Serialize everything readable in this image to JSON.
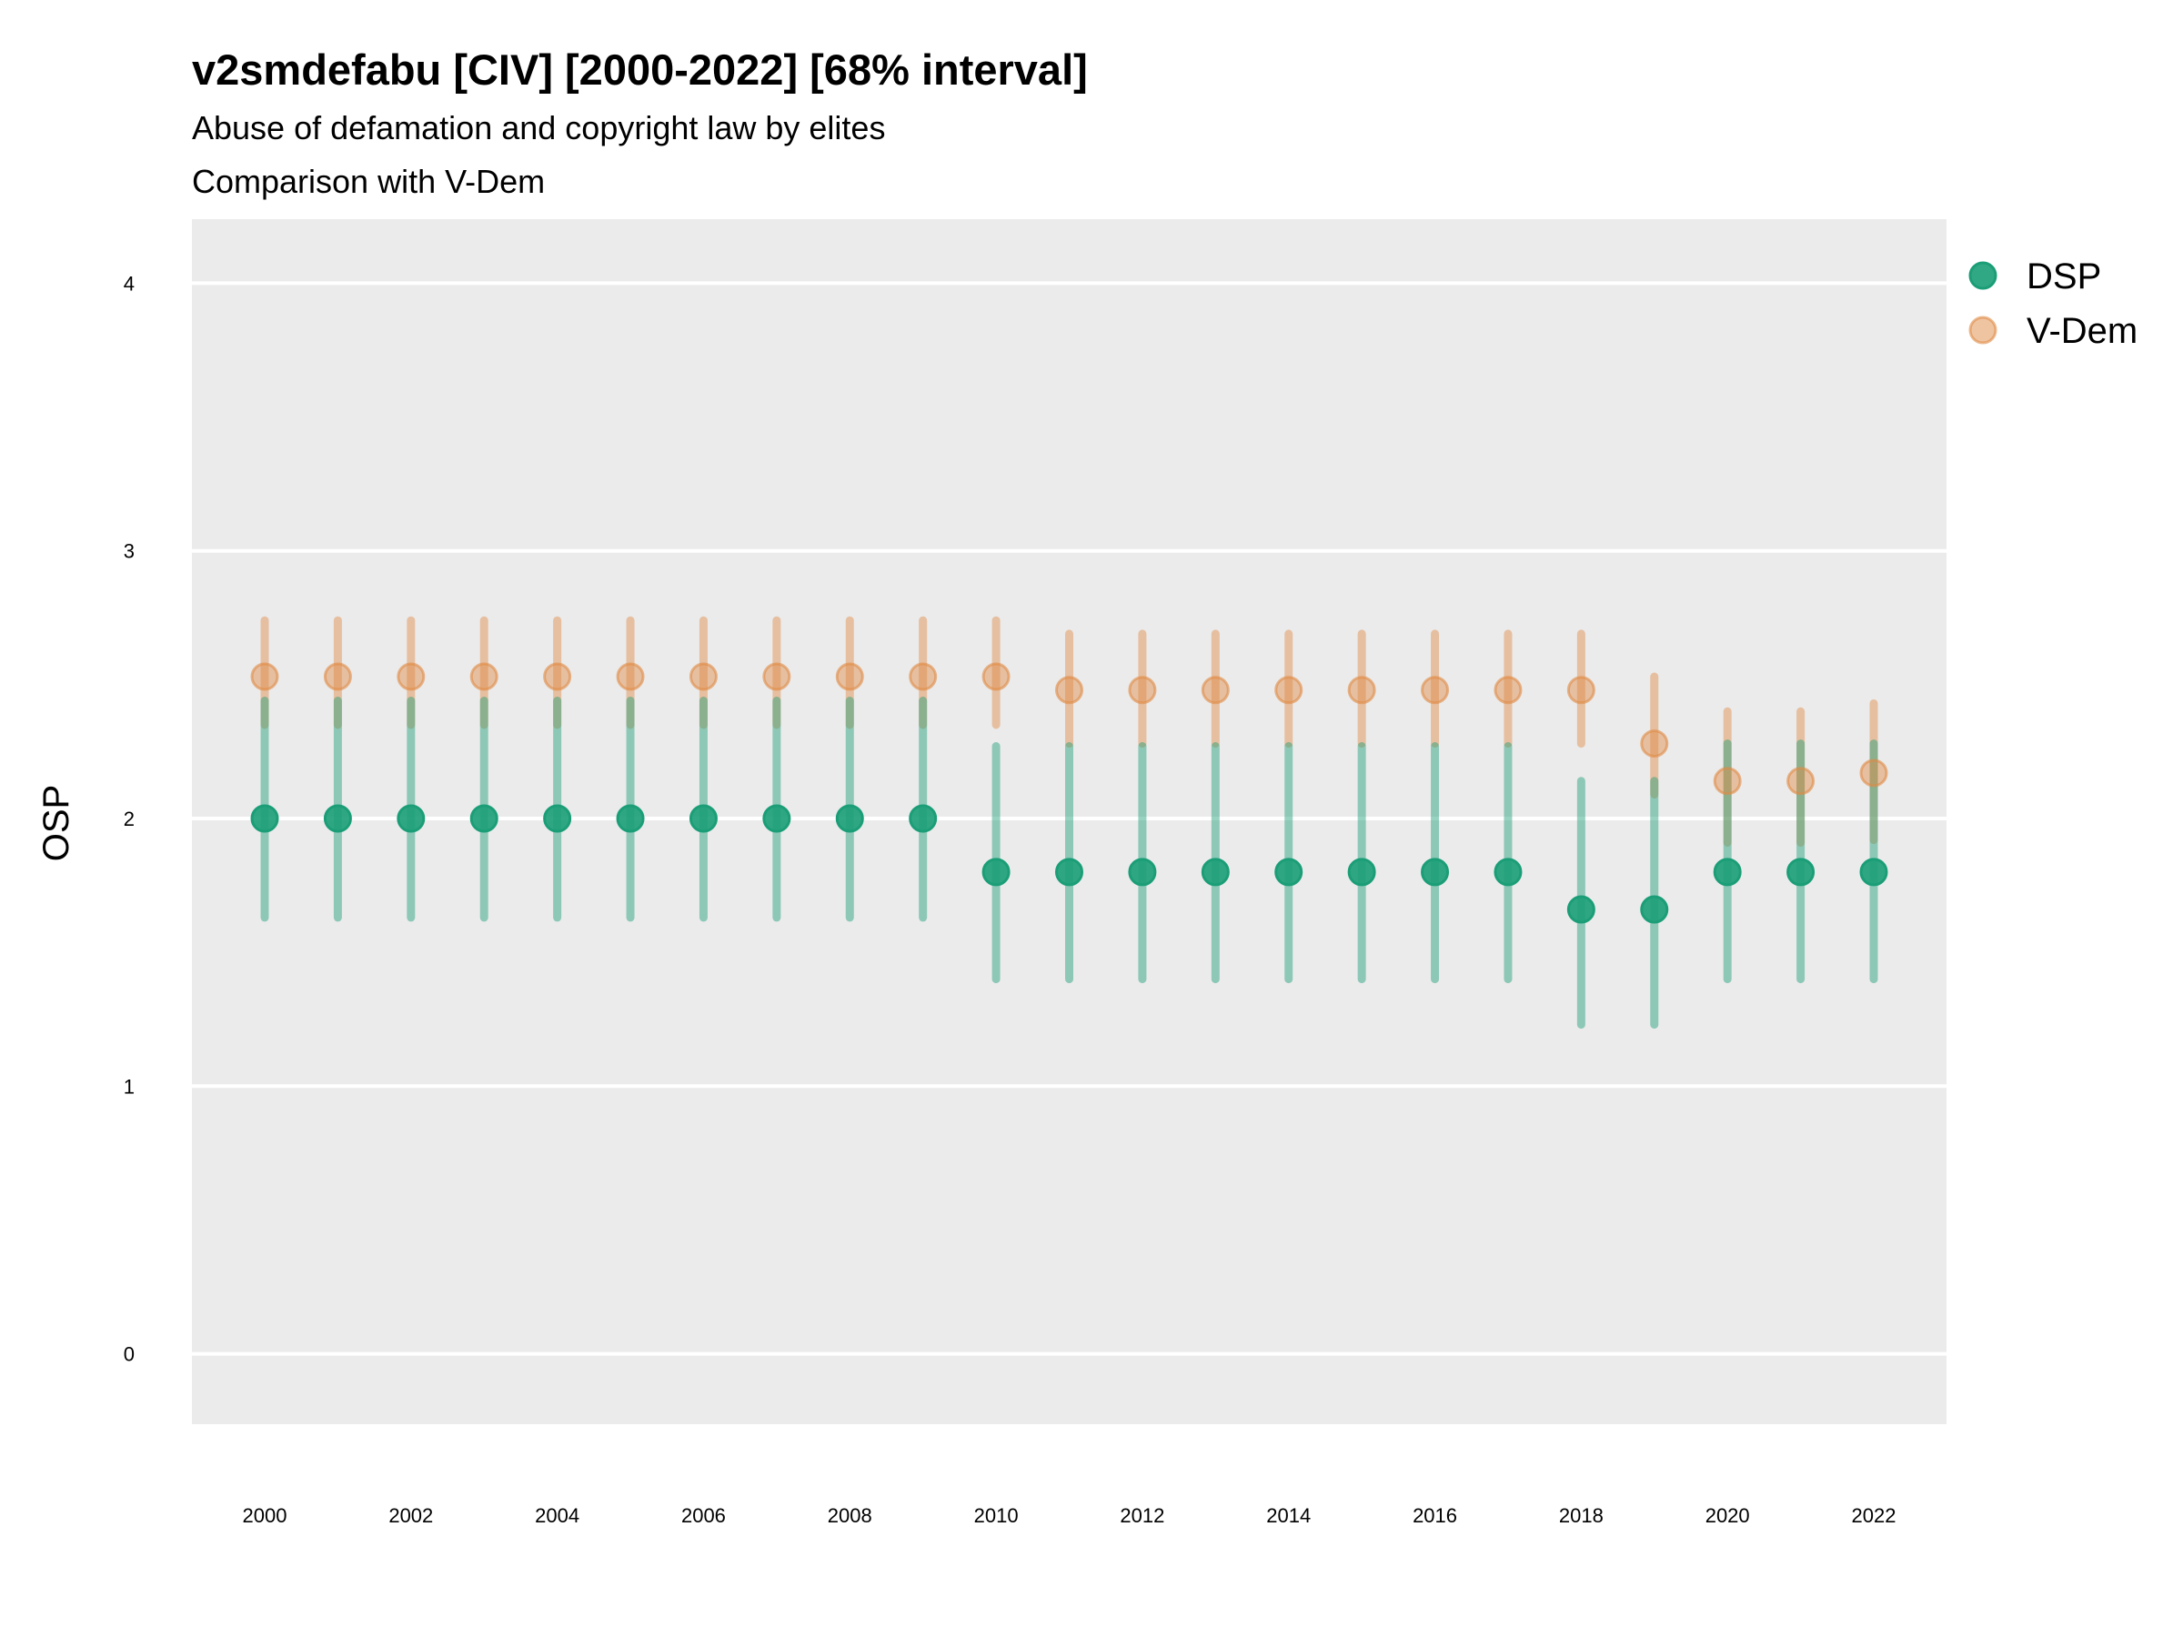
{
  "chart_data": {
    "type": "scatter",
    "title": "v2smdefabu [CIV] [2000-2022] [68% interval]",
    "subtitle": "Abuse of defamation and copyright law by elites",
    "caption": "Comparison with V-Dem",
    "xlabel": "",
    "ylabel": "OSP",
    "ylim": [
      -0.25,
      4.25
    ],
    "xlim": [
      1999,
      2023
    ],
    "yticks": [
      "0",
      "1",
      "2",
      "3",
      "4"
    ],
    "xticks": [
      "2000",
      "2002",
      "2004",
      "2006",
      "2008",
      "2010",
      "2012",
      "2014",
      "2016",
      "2018",
      "2020",
      "2022"
    ],
    "grid": true,
    "legend_position": "right",
    "x": [
      2000,
      2001,
      2002,
      2003,
      2004,
      2005,
      2006,
      2007,
      2008,
      2009,
      2010,
      2011,
      2012,
      2013,
      2014,
      2015,
      2016,
      2017,
      2018,
      2019,
      2020,
      2021,
      2022
    ],
    "series": [
      {
        "name": "DSP",
        "color": "#1b9e77",
        "values": [
          2.0,
          2.0,
          2.0,
          2.0,
          2.0,
          2.0,
          2.0,
          2.0,
          2.0,
          2.0,
          1.8,
          1.8,
          1.8,
          1.8,
          1.8,
          1.8,
          1.8,
          1.8,
          1.66,
          1.66,
          1.8,
          1.8,
          1.8
        ],
        "lower": [
          1.63,
          1.63,
          1.63,
          1.63,
          1.63,
          1.63,
          1.63,
          1.63,
          1.63,
          1.63,
          1.4,
          1.4,
          1.4,
          1.4,
          1.4,
          1.4,
          1.4,
          1.4,
          1.23,
          1.23,
          1.4,
          1.4,
          1.4
        ],
        "upper": [
          2.44,
          2.44,
          2.44,
          2.44,
          2.44,
          2.44,
          2.44,
          2.44,
          2.44,
          2.44,
          2.27,
          2.27,
          2.27,
          2.27,
          2.27,
          2.27,
          2.27,
          2.27,
          2.14,
          2.14,
          2.28,
          2.28,
          2.28
        ]
      },
      {
        "name": "V-Dem",
        "color": "#e08a44",
        "values": [
          2.53,
          2.53,
          2.53,
          2.53,
          2.53,
          2.53,
          2.53,
          2.53,
          2.53,
          2.53,
          2.53,
          2.48,
          2.48,
          2.48,
          2.48,
          2.48,
          2.48,
          2.48,
          2.48,
          2.28,
          2.14,
          2.14,
          2.17
        ],
        "lower": [
          2.35,
          2.35,
          2.35,
          2.35,
          2.35,
          2.35,
          2.35,
          2.35,
          2.35,
          2.35,
          2.35,
          2.28,
          2.28,
          2.28,
          2.28,
          2.28,
          2.28,
          2.28,
          2.28,
          2.09,
          1.91,
          1.91,
          1.92
        ],
        "upper": [
          2.74,
          2.74,
          2.74,
          2.74,
          2.74,
          2.74,
          2.74,
          2.74,
          2.74,
          2.74,
          2.74,
          2.69,
          2.69,
          2.69,
          2.69,
          2.69,
          2.69,
          2.69,
          2.69,
          2.53,
          2.4,
          2.4,
          2.43
        ]
      }
    ]
  }
}
